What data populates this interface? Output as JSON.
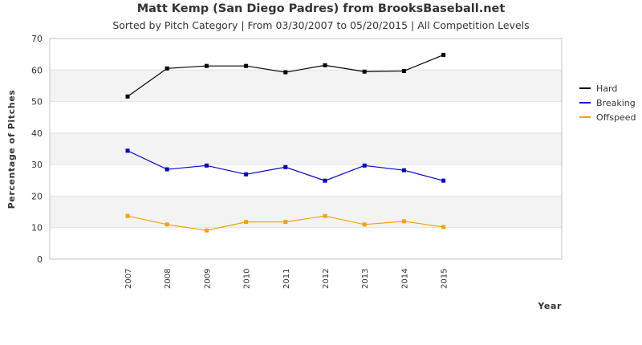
{
  "chart_data": {
    "type": "line",
    "title": "Matt Kemp (San Diego Padres) from BrooksBaseball.net",
    "subtitle": "Sorted by Pitch Category | From 03/30/2007 to 05/20/2015 | All Competition Levels",
    "xlabel": "Year",
    "ylabel": "Percentage of Pitches",
    "ylim": [
      0,
      70
    ],
    "yticks": [
      0,
      10,
      20,
      30,
      40,
      50,
      60,
      70
    ],
    "categories": [
      "2007",
      "2008",
      "2009",
      "2010",
      "2011",
      "2012",
      "2013",
      "2014",
      "2015"
    ],
    "legend_position": "right",
    "series": [
      {
        "name": "Hard",
        "color": "#000000",
        "values": [
          51.6,
          60.5,
          61.3,
          61.3,
          59.3,
          61.5,
          59.5,
          59.7,
          64.8
        ]
      },
      {
        "name": "Breaking",
        "color": "#0000cc",
        "values": [
          34.4,
          28.5,
          29.7,
          26.9,
          29.2,
          24.9,
          29.7,
          28.2,
          24.9
        ]
      },
      {
        "name": "Offspeed",
        "color": "#f0a30a",
        "values": [
          13.7,
          11.0,
          9.1,
          11.8,
          11.8,
          13.7,
          11.0,
          12.0,
          10.2
        ]
      }
    ]
  }
}
